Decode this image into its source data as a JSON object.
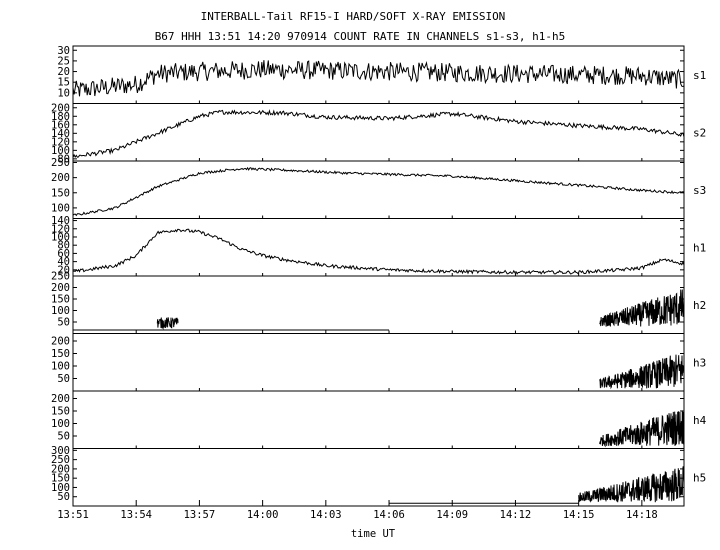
{
  "chart_data": {
    "type": "line",
    "title": "INTERBALL-Tail RF15-I HARD/SOFT X-RAY EMISSION",
    "subtitle": "B67 HHH 13:51 14:20 970914  COUNT RATE IN CHANNELS s1-s3, h1-h5",
    "xlabel": "time UT",
    "x_ticks": [
      "13:51",
      "13:54",
      "13:57",
      "14:00",
      "14:03",
      "14:06",
      "14:09",
      "14:12",
      "14:15",
      "14:18"
    ],
    "xlim": [
      "13:51",
      "14:20"
    ],
    "grid": false,
    "panels": [
      {
        "name": "s1",
        "ylim": [
          5,
          32
        ],
        "yticks": [
          10,
          15,
          20,
          25,
          30
        ],
        "profile": [
          [
            "13:51",
            11
          ],
          [
            "13:54",
            14
          ],
          [
            "13:55",
            19
          ],
          [
            "13:57",
            20
          ],
          [
            "14:00",
            21
          ],
          [
            "14:06",
            20
          ],
          [
            "14:12",
            19
          ],
          [
            "14:18",
            18
          ],
          [
            "14:20",
            16
          ]
        ],
        "noise": 4.5
      },
      {
        "name": "s2",
        "ylim": [
          75,
          210
        ],
        "yticks": [
          80,
          100,
          120,
          140,
          160,
          180,
          200
        ],
        "profile": [
          [
            "13:51",
            85
          ],
          [
            "13:53",
            100
          ],
          [
            "13:55",
            140
          ],
          [
            "13:57",
            180
          ],
          [
            "13:58",
            190
          ],
          [
            "14:01",
            188
          ],
          [
            "14:03",
            178
          ],
          [
            "14:06",
            175
          ],
          [
            "14:09",
            186
          ],
          [
            "14:12",
            168
          ],
          [
            "14:15",
            158
          ],
          [
            "14:18",
            150
          ],
          [
            "14:20",
            136
          ]
        ],
        "noise": 5
      },
      {
        "name": "s3",
        "ylim": [
          65,
          255
        ],
        "yticks": [
          100,
          150,
          200,
          250
        ],
        "profile": [
          [
            "13:51",
            75
          ],
          [
            "13:53",
            100
          ],
          [
            "13:55",
            170
          ],
          [
            "13:57",
            215
          ],
          [
            "13:59",
            230
          ],
          [
            "14:01",
            225
          ],
          [
            "14:04",
            215
          ],
          [
            "14:09",
            205
          ],
          [
            "14:12",
            190
          ],
          [
            "14:15",
            175
          ],
          [
            "14:18",
            158
          ],
          [
            "14:20",
            150
          ]
        ],
        "noise": 4
      },
      {
        "name": "h1",
        "ylim": [
          5,
          145
        ],
        "yticks": [
          20,
          40,
          60,
          80,
          100,
          120,
          140
        ],
        "profile": [
          [
            "13:51",
            15
          ],
          [
            "13:53",
            30
          ],
          [
            "13:54",
            55
          ],
          [
            "13:55",
            110
          ],
          [
            "13:56",
            118
          ],
          [
            "13:57",
            112
          ],
          [
            "13:58",
            95
          ],
          [
            "13:59",
            70
          ],
          [
            "14:00",
            55
          ],
          [
            "14:01",
            45
          ],
          [
            "14:03",
            30
          ],
          [
            "14:06",
            20
          ],
          [
            "14:09",
            16
          ],
          [
            "14:12",
            14
          ],
          [
            "14:15",
            14
          ],
          [
            "14:17",
            20
          ],
          [
            "14:18",
            25
          ],
          [
            "14:19",
            45
          ],
          [
            "14:20",
            35
          ]
        ],
        "noise": 4
      },
      {
        "name": "h2",
        "ylim": [
          0,
          250
        ],
        "yticks": [
          50,
          100,
          150,
          200,
          250
        ],
        "baseline": 15,
        "baseline_range": [
          "13:51",
          "14:06"
        ],
        "bursts": [
          {
            "start": "13:55",
            "end": "13:56",
            "low": 22,
            "high": 70
          },
          {
            "start": "14:16",
            "end": "14:20",
            "low": 30,
            "high": 200,
            "rise": true
          }
        ]
      },
      {
        "name": "h3",
        "ylim": [
          0,
          230
        ],
        "yticks": [
          50,
          100,
          150,
          200
        ],
        "bursts": [
          {
            "start": "14:16",
            "end": "14:20",
            "low": 10,
            "high": 160,
            "rise": true
          }
        ]
      },
      {
        "name": "h4",
        "ylim": [
          0,
          230
        ],
        "yticks": [
          50,
          100,
          150,
          200
        ],
        "bursts": [
          {
            "start": "14:16",
            "end": "14:20",
            "low": 10,
            "high": 170,
            "rise": true
          }
        ]
      },
      {
        "name": "h5",
        "ylim": [
          0,
          310
        ],
        "yticks": [
          50,
          100,
          150,
          200,
          250,
          300
        ],
        "baseline": 15,
        "baseline_range": [
          "14:06",
          "14:15"
        ],
        "bursts": [
          {
            "start": "14:15",
            "end": "14:20",
            "low": 20,
            "high": 220,
            "rise": true
          }
        ]
      }
    ]
  }
}
